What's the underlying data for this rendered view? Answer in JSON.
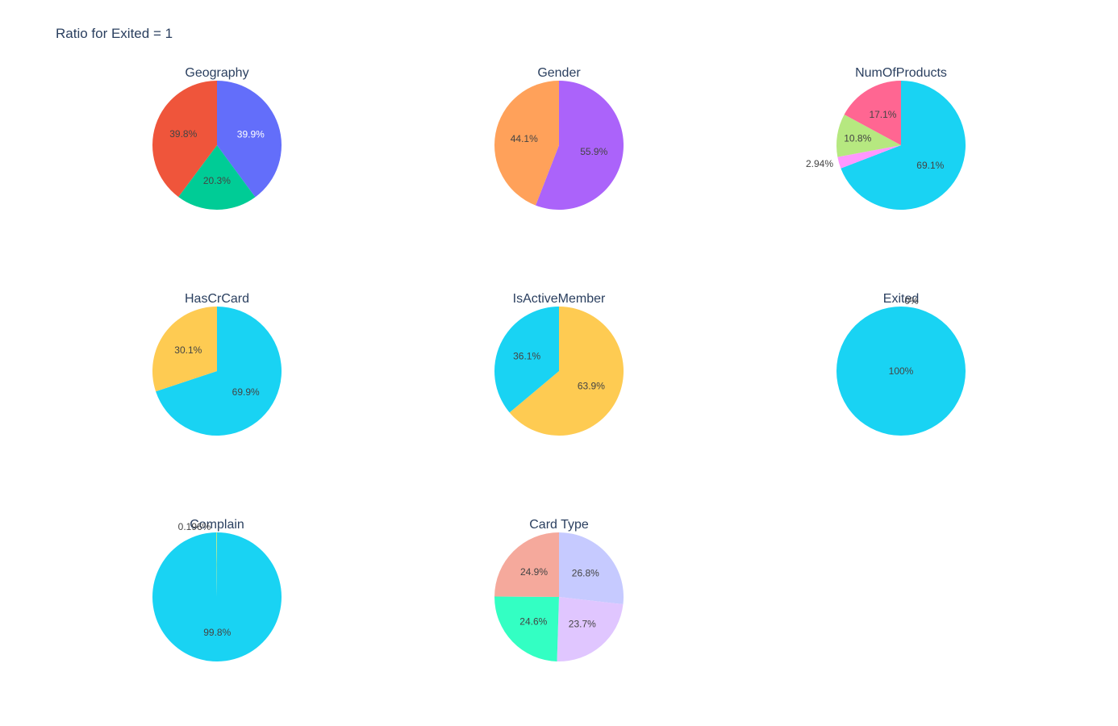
{
  "title": "Ratio for Exited = 1",
  "chart_data": [
    {
      "type": "pie",
      "title": "Geography",
      "labels_visible": [
        "39.9%",
        "20.3%",
        "39.8%"
      ],
      "values": [
        39.9,
        20.3,
        39.8
      ],
      "colors": [
        "#636efa",
        "#00cc96",
        "#ef553b"
      ],
      "label_colors": [
        "#ffffff",
        "#444444",
        "#444444"
      ]
    },
    {
      "type": "pie",
      "title": "Gender",
      "labels_visible": [
        "55.9%",
        "44.1%"
      ],
      "values": [
        55.9,
        44.1
      ],
      "colors": [
        "#ab63fa",
        "#ffa15a"
      ],
      "label_colors": [
        "#444444",
        "#444444"
      ]
    },
    {
      "type": "pie",
      "title": "NumOfProducts",
      "labels_visible": [
        "69.1%",
        "2.94%",
        "10.8%",
        "17.1%"
      ],
      "values": [
        69.1,
        2.94,
        10.8,
        17.1
      ],
      "colors": [
        "#19d3f3",
        "#ff97ff",
        "#b6e880",
        "#ff6692"
      ],
      "label_colors": [
        "#444444",
        "#444444",
        "#444444",
        "#444444"
      ],
      "outside": [
        false,
        true,
        false,
        false
      ]
    },
    {
      "type": "pie",
      "title": "HasCrCard",
      "labels_visible": [
        "69.9%",
        "30.1%"
      ],
      "values": [
        69.9,
        30.1
      ],
      "colors": [
        "#19d3f3",
        "#fecb52"
      ],
      "label_colors": [
        "#444444",
        "#444444"
      ]
    },
    {
      "type": "pie",
      "title": "IsActiveMember",
      "labels_visible": [
        "63.9%",
        "36.1%"
      ],
      "values": [
        63.9,
        36.1
      ],
      "colors": [
        "#fecb52",
        "#19d3f3"
      ],
      "label_colors": [
        "#444444",
        "#444444"
      ]
    },
    {
      "type": "pie",
      "title": "Exited",
      "labels_visible": [
        "100%",
        "0%"
      ],
      "values": [
        100,
        0
      ],
      "colors": [
        "#19d3f3",
        "#fecb52"
      ],
      "label_colors": [
        "#444444",
        "#444444"
      ],
      "outside": [
        false,
        true
      ]
    },
    {
      "type": "pie",
      "title": "Complain",
      "labels_visible": [
        "99.8%",
        "0.196%"
      ],
      "values": [
        99.804,
        0.196
      ],
      "colors": [
        "#19d3f3",
        "#b6e880"
      ],
      "label_colors": [
        "#444444",
        "#444444"
      ],
      "outside": [
        false,
        true
      ]
    },
    {
      "type": "pie",
      "title": "Card Type",
      "labels_visible": [
        "26.8%",
        "23.7%",
        "24.6%",
        "24.9%"
      ],
      "values": [
        26.8,
        23.7,
        24.6,
        24.9
      ],
      "colors": [
        "#c6caff",
        "#e0c6ff",
        "#33ffc3",
        "#f5a99c"
      ],
      "label_colors": [
        "#444444",
        "#444444",
        "#444444",
        "#444444"
      ]
    }
  ]
}
